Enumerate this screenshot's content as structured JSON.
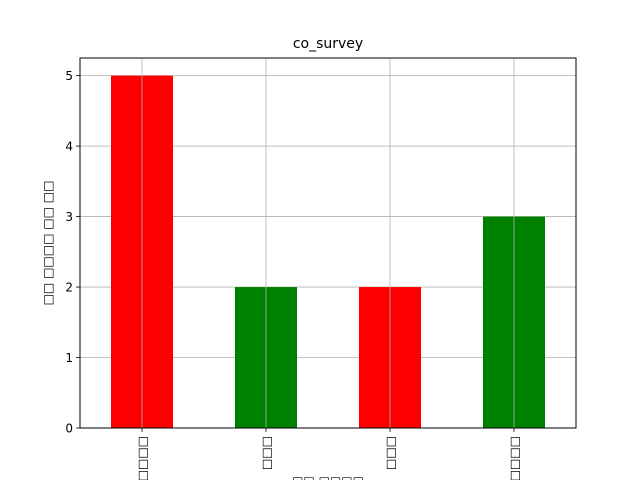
{
  "chart_data": {
    "type": "bar",
    "title": "co_survey",
    "categories": [
      "□□□□",
      "□□□",
      "□□□",
      "□□□□"
    ],
    "values": [
      5,
      2,
      2,
      3
    ],
    "bar_colors": [
      "#ff0000",
      "#008000",
      "#ff0000",
      "#008000"
    ],
    "xlabel": "□□ □□□□",
    "ylabel": "□□ □□□□ □□ □□",
    "ylim": [
      0,
      5.25
    ],
    "yticks": [
      0,
      1,
      2,
      3,
      4,
      5
    ],
    "grid": true
  }
}
